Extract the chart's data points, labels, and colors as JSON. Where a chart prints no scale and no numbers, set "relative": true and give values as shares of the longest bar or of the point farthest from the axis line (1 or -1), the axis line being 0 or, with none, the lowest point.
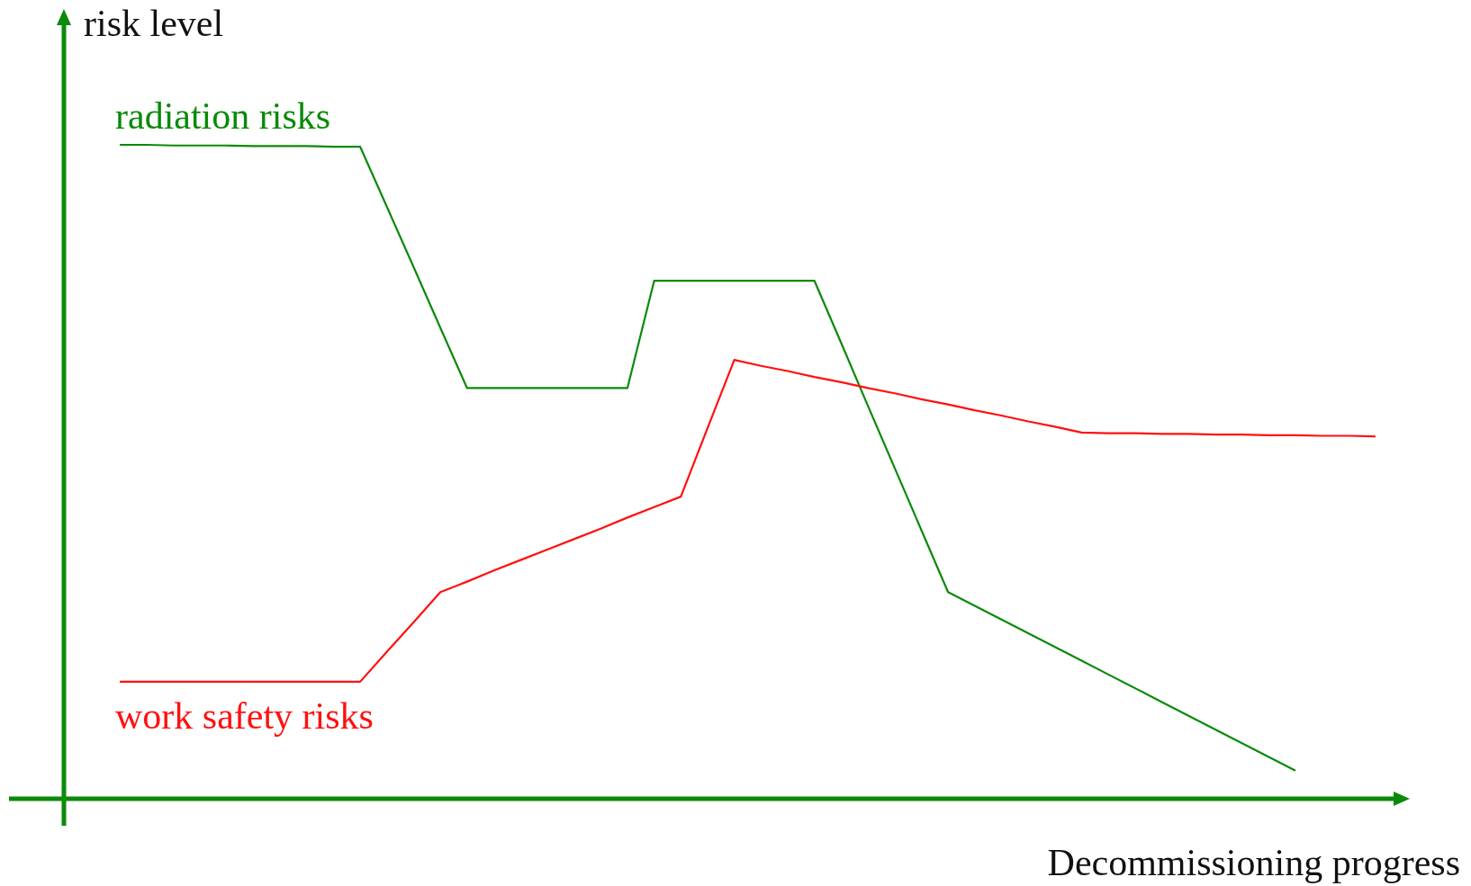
{
  "chart_data": {
    "type": "line",
    "relative": true,
    "xlabel": "Decommissioning progress",
    "ylabel": "risk level",
    "legend": false,
    "marker": "none",
    "line_style": "solid",
    "categories": [
      null,
      null,
      null,
      null,
      null,
      null,
      null,
      null,
      null,
      null,
      null,
      null,
      null,
      null,
      null,
      null,
      null,
      null,
      null,
      null,
      null,
      null,
      null,
      null,
      null,
      null,
      null,
      null,
      null,
      null,
      null,
      null,
      null,
      null,
      null,
      null,
      null,
      null,
      null,
      null,
      null,
      null,
      null,
      null,
      null,
      null,
      null,
      null
    ],
    "series": [
      {
        "name": "radiation risks",
        "color": "#0a8a0a",
        "values": [
          1,
          1,
          0.999,
          0.999,
          0.999,
          0.998,
          0.998,
          0.998,
          0.997,
          0.997,
          0.905,
          0.813,
          0.72,
          0.628,
          0.628,
          0.628,
          0.628,
          0.628,
          0.628,
          0.628,
          0.792,
          0.792,
          0.792,
          0.792,
          0.792,
          0.792,
          0.792,
          0.697,
          0.601,
          0.506,
          0.411,
          0.316,
          0.295,
          0.274,
          0.253,
          0.232,
          0.211,
          0.19,
          0.169,
          0.148,
          0.127,
          0.106,
          0.085,
          0.064,
          0.043,
          null,
          null,
          null
        ]
      },
      {
        "name": "work safety risks",
        "color": "#ff1010",
        "values": [
          0.179,
          0.179,
          0.179,
          0.179,
          0.179,
          0.179,
          0.179,
          0.179,
          0.179,
          0.179,
          0.225,
          0.27,
          0.316,
          0.332,
          0.349,
          0.365,
          0.381,
          0.397,
          0.413,
          0.43,
          0.446,
          0.462,
          0.567,
          0.671,
          0.662,
          0.654,
          0.645,
          0.637,
          0.628,
          0.62,
          0.611,
          0.603,
          0.594,
          0.586,
          0.577,
          0.569,
          0.56,
          0.559,
          0.559,
          0.558,
          0.558,
          0.557,
          0.557,
          0.556,
          0.556,
          0.555,
          0.555,
          0.554
        ]
      }
    ]
  }
}
